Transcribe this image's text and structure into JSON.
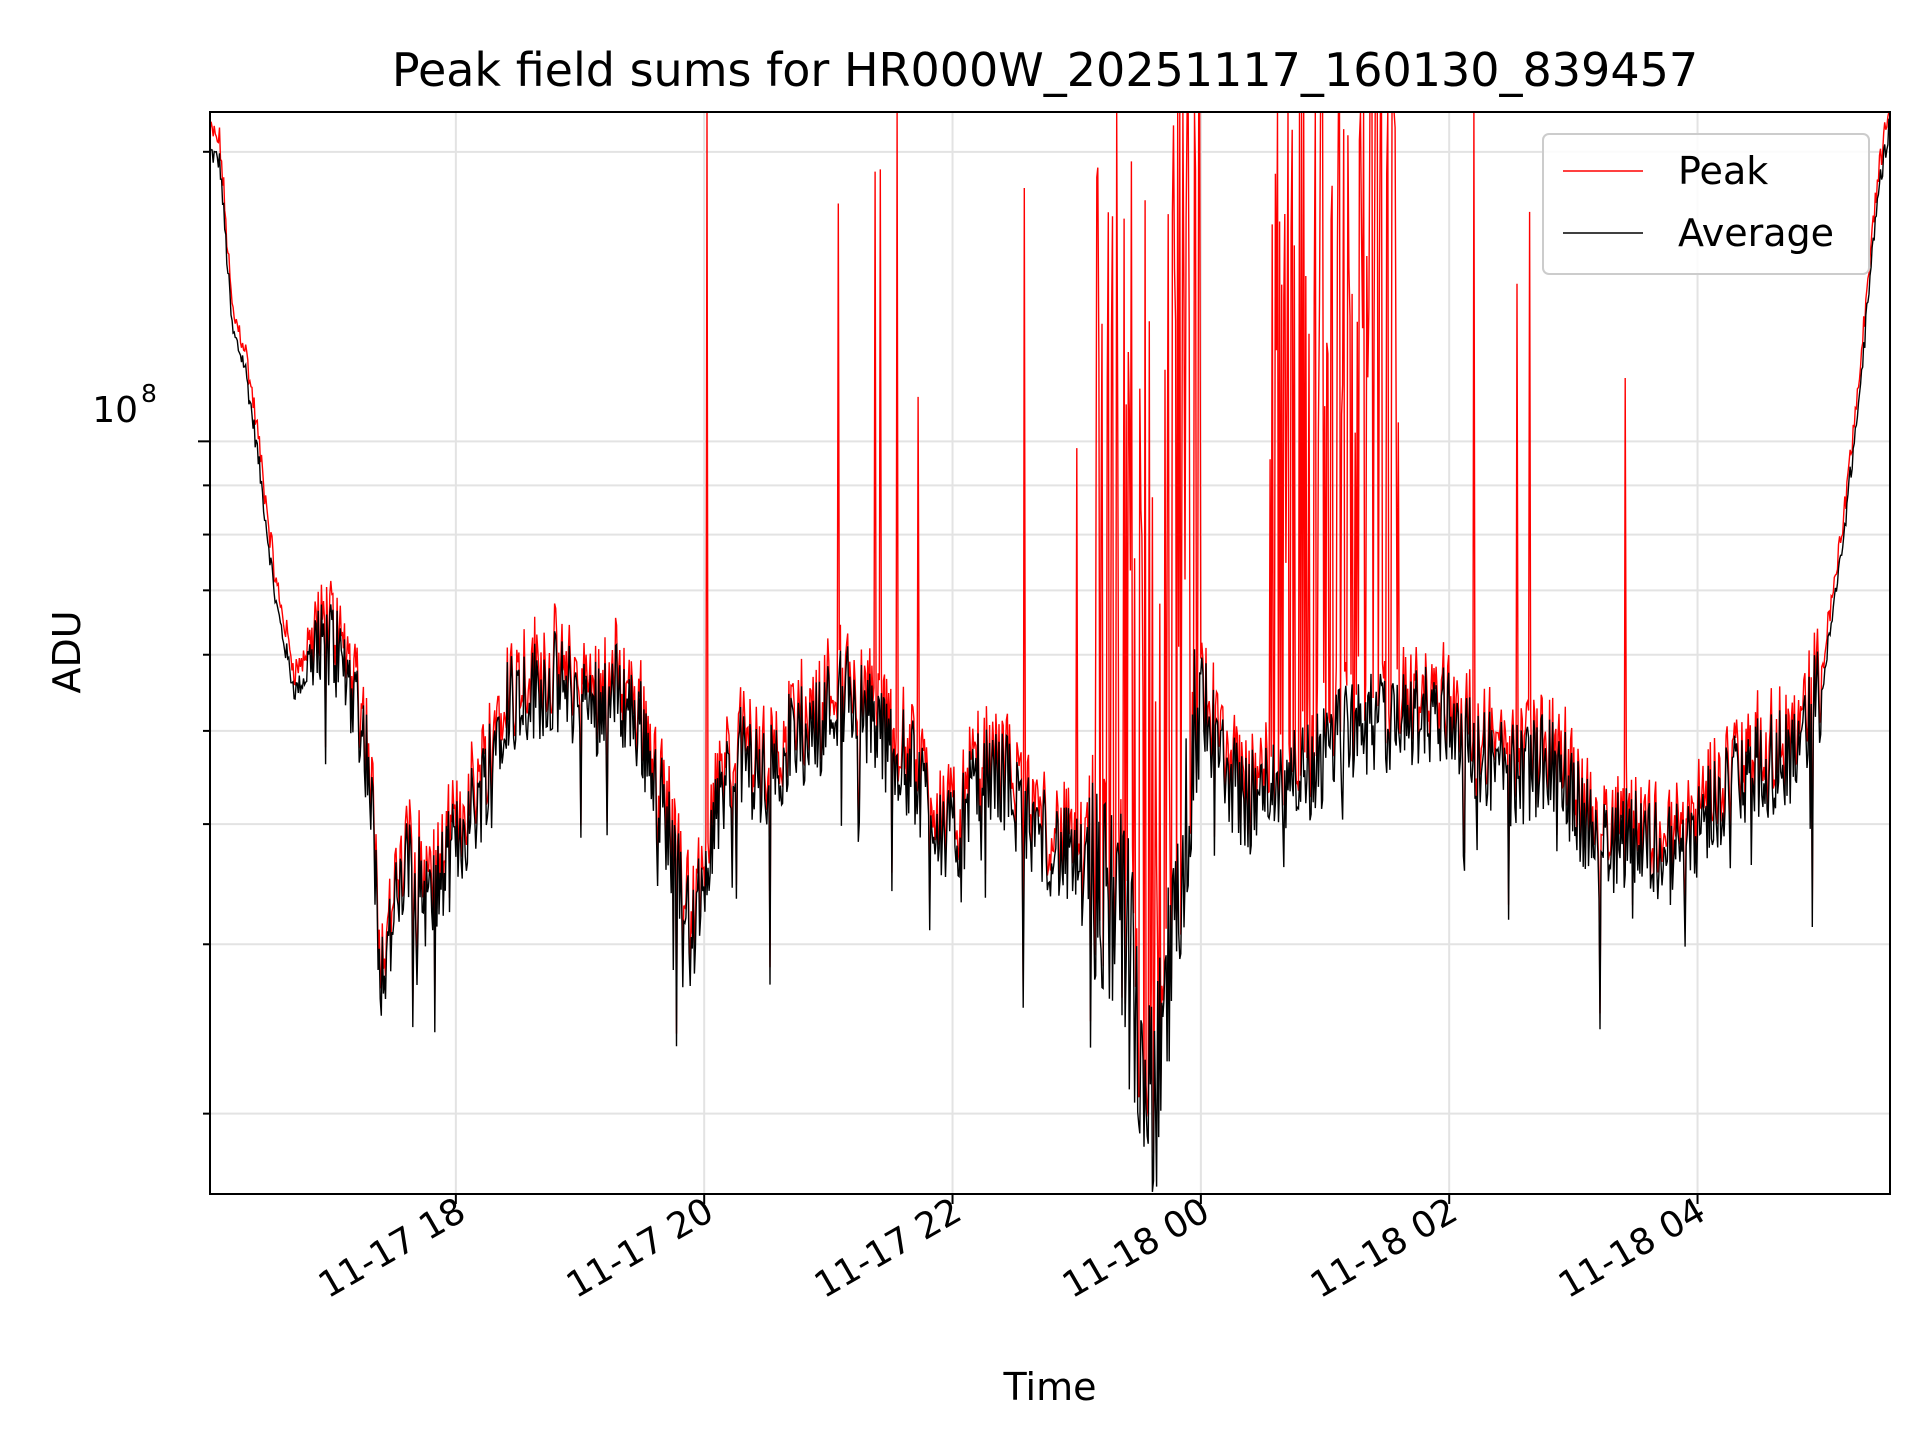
{
  "chart_data": {
    "type": "line",
    "title": "Peak field sums for HR000W_20251117_160130_839457",
    "xlabel": "Time",
    "ylabel": "ADU",
    "y_scale": "log",
    "y_tick_major": {
      "label_base": "10",
      "label_exp": "8",
      "value": 100000000
    },
    "ylim": [
      16500000,
      220000000
    ],
    "xlim_hours": [
      16.02,
      5.55
    ],
    "x_tick_labels": [
      "11-17 18",
      "11-17 20",
      "11-17 22",
      "11-18 00",
      "11-18 02",
      "11-18 04"
    ],
    "x_tick_hours": [
      18,
      20,
      22,
      24,
      26,
      28
    ],
    "grid": true,
    "legend_position": "top-right",
    "series": [
      {
        "name": "Peak",
        "color": "#ff0000"
      },
      {
        "name": "Average",
        "color": "#000000"
      }
    ],
    "average_anchors": [
      [
        16.02,
        200000000
      ],
      [
        16.1,
        195000000
      ],
      [
        16.2,
        130000000
      ],
      [
        16.3,
        120000000
      ],
      [
        16.4,
        98000000
      ],
      [
        16.55,
        68000000
      ],
      [
        16.7,
        55000000
      ],
      [
        16.85,
        58000000
      ],
      [
        17.0,
        62000000
      ],
      [
        17.2,
        54000000
      ],
      [
        17.3,
        46000000
      ],
      [
        17.4,
        28000000
      ],
      [
        17.6,
        36000000
      ],
      [
        17.8,
        33000000
      ],
      [
        18.0,
        38000000
      ],
      [
        18.2,
        43000000
      ],
      [
        18.4,
        54000000
      ],
      [
        18.6,
        55000000
      ],
      [
        18.8,
        56000000
      ],
      [
        19.1,
        53000000
      ],
      [
        19.3,
        55000000
      ],
      [
        19.5,
        50000000
      ],
      [
        19.7,
        40000000
      ],
      [
        19.9,
        30000000
      ],
      [
        20.1,
        42000000
      ],
      [
        20.3,
        47000000
      ],
      [
        20.5,
        44000000
      ],
      [
        20.7,
        49000000
      ],
      [
        20.9,
        50000000
      ],
      [
        21.1,
        55000000
      ],
      [
        21.3,
        52000000
      ],
      [
        21.5,
        48000000
      ],
      [
        21.7,
        45000000
      ],
      [
        21.9,
        40000000
      ],
      [
        22.0,
        38000000
      ],
      [
        22.2,
        44000000
      ],
      [
        22.4,
        45000000
      ],
      [
        22.6,
        40000000
      ],
      [
        22.8,
        38000000
      ],
      [
        23.0,
        36000000
      ],
      [
        23.2,
        34000000
      ],
      [
        23.4,
        31000000
      ],
      [
        23.6,
        20000000
      ],
      [
        23.7,
        25000000
      ],
      [
        23.8,
        35000000
      ],
      [
        23.9,
        45000000
      ],
      [
        24.0,
        55000000
      ],
      [
        24.2,
        45000000
      ],
      [
        24.4,
        42000000
      ],
      [
        24.6,
        44000000
      ],
      [
        24.8,
        45000000
      ],
      [
        25.0,
        47000000
      ],
      [
        25.2,
        50000000
      ],
      [
        25.5,
        51000000
      ],
      [
        25.8,
        52000000
      ],
      [
        26.0,
        52000000
      ],
      [
        26.2,
        48000000
      ],
      [
        26.5,
        45000000
      ],
      [
        26.8,
        46000000
      ],
      [
        27.0,
        43000000
      ],
      [
        27.2,
        37000000
      ],
      [
        27.4,
        39000000
      ],
      [
        27.6,
        38000000
      ],
      [
        27.8,
        37000000
      ],
      [
        28.0,
        40000000
      ],
      [
        28.2,
        43000000
      ],
      [
        28.4,
        45000000
      ],
      [
        28.6,
        46000000
      ],
      [
        28.8,
        48000000
      ],
      [
        29.0,
        55000000
      ],
      [
        29.15,
        75000000
      ],
      [
        29.3,
        110000000
      ],
      [
        29.45,
        180000000
      ],
      [
        29.55,
        215000000
      ]
    ],
    "peak_spikes_hours": [
      20.02,
      21.08,
      21.38,
      21.42,
      21.55,
      21.72,
      22.58,
      23.0,
      24.6,
      25.05,
      25.15,
      25.3,
      26.2,
      26.55,
      26.65,
      27.42
    ]
  }
}
